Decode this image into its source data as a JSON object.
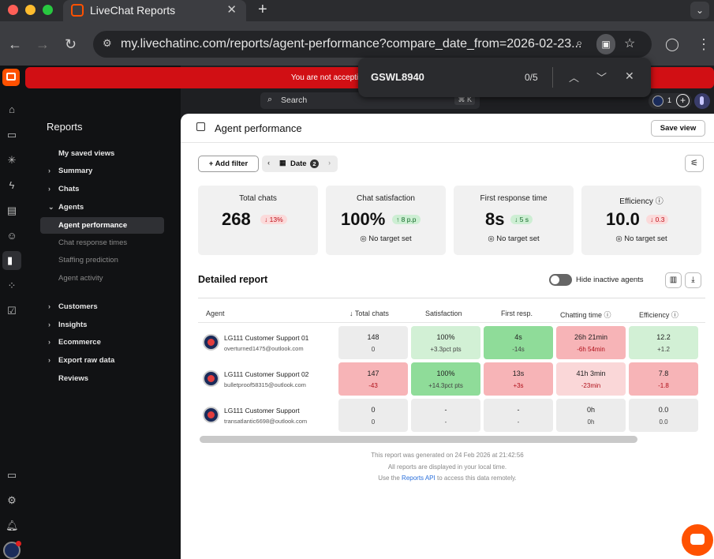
{
  "browser": {
    "tab_title": "LiveChat Reports",
    "url": "my.livechatinc.com/reports/agent-performance?compare_date_from=2026-02-23...",
    "find": {
      "query": "GSWL8940",
      "count": "0/5"
    }
  },
  "banner": {
    "text": "You are not accepting chats, but customers c"
  },
  "search": {
    "placeholder": "Search",
    "shortcut": "⌘ K"
  },
  "topbar": {
    "badge_count": "1"
  },
  "sidebar": {
    "heading": "Reports",
    "items": [
      {
        "label": "My saved views"
      },
      {
        "label": "Summary"
      },
      {
        "label": "Chats"
      },
      {
        "label": "Agents"
      },
      {
        "label": "Agent performance"
      },
      {
        "label": "Chat response times"
      },
      {
        "label": "Staffing prediction"
      },
      {
        "label": "Agent activity"
      },
      {
        "label": "Customers"
      },
      {
        "label": "Insights"
      },
      {
        "label": "Ecommerce"
      },
      {
        "label": "Export raw data"
      },
      {
        "label": "Reviews"
      }
    ]
  },
  "page": {
    "title": "Agent performance",
    "save_view": "Save view",
    "add_filter": "Add filter",
    "date_label": "Date",
    "date_badge": "2"
  },
  "cards": [
    {
      "title": "Total chats",
      "value": "268",
      "delta": "13%",
      "foot": ""
    },
    {
      "title": "Chat satisfaction",
      "value": "100%",
      "delta": "8 p.p",
      "foot": "No target set"
    },
    {
      "title": "First response time",
      "value": "8s",
      "delta": "5 s",
      "foot": "No target set"
    },
    {
      "title": "Efficiency",
      "value": "10.0",
      "delta": "0.3",
      "foot": "No target set"
    }
  ],
  "report": {
    "title": "Detailed report",
    "toggle_label": "Hide inactive agents",
    "columns": [
      "Agent",
      "Total chats",
      "Satisfaction",
      "First resp.",
      "Chatting time",
      "Efficiency"
    ],
    "rows": [
      {
        "name": "LG111 Customer Support 01",
        "email": "overturned1475@outlook.com",
        "cells": [
          {
            "v": "148",
            "d": "0"
          },
          {
            "v": "100%",
            "d": "+3.3pct pts"
          },
          {
            "v": "4s",
            "d": "-14s"
          },
          {
            "v": "26h 21min",
            "d": "-6h 54min"
          },
          {
            "v": "12.2",
            "d": "+1.2"
          }
        ]
      },
      {
        "name": "LG111 Customer Support 02",
        "email": "bulletproof58315@outlook.com",
        "cells": [
          {
            "v": "147",
            "d": "-43"
          },
          {
            "v": "100%",
            "d": "+14.3pct pts"
          },
          {
            "v": "13s",
            "d": "+3s"
          },
          {
            "v": "41h 3min",
            "d": "-23min"
          },
          {
            "v": "7.8",
            "d": "-1.8"
          }
        ]
      },
      {
        "name": "LG111 Customer Support",
        "email": "transatlantic6698@outlook.com",
        "cells": [
          {
            "v": "0",
            "d": "0"
          },
          {
            "v": "-",
            "d": "-"
          },
          {
            "v": "-",
            "d": "-"
          },
          {
            "v": "0h",
            "d": "0h"
          },
          {
            "v": "0.0",
            "d": "0.0"
          }
        ]
      }
    ]
  },
  "footer": {
    "line1": "This report was generated on 24 Feb 2026 at 21:42:56",
    "line2": "All reports are displayed in your local time.",
    "line3_pre": "Use the",
    "line3_link": "Reports API",
    "line3_post": "to access this data remotely."
  },
  "colors": {
    "accent_red": "#d10f14",
    "brand_orange": "#ff5100"
  }
}
